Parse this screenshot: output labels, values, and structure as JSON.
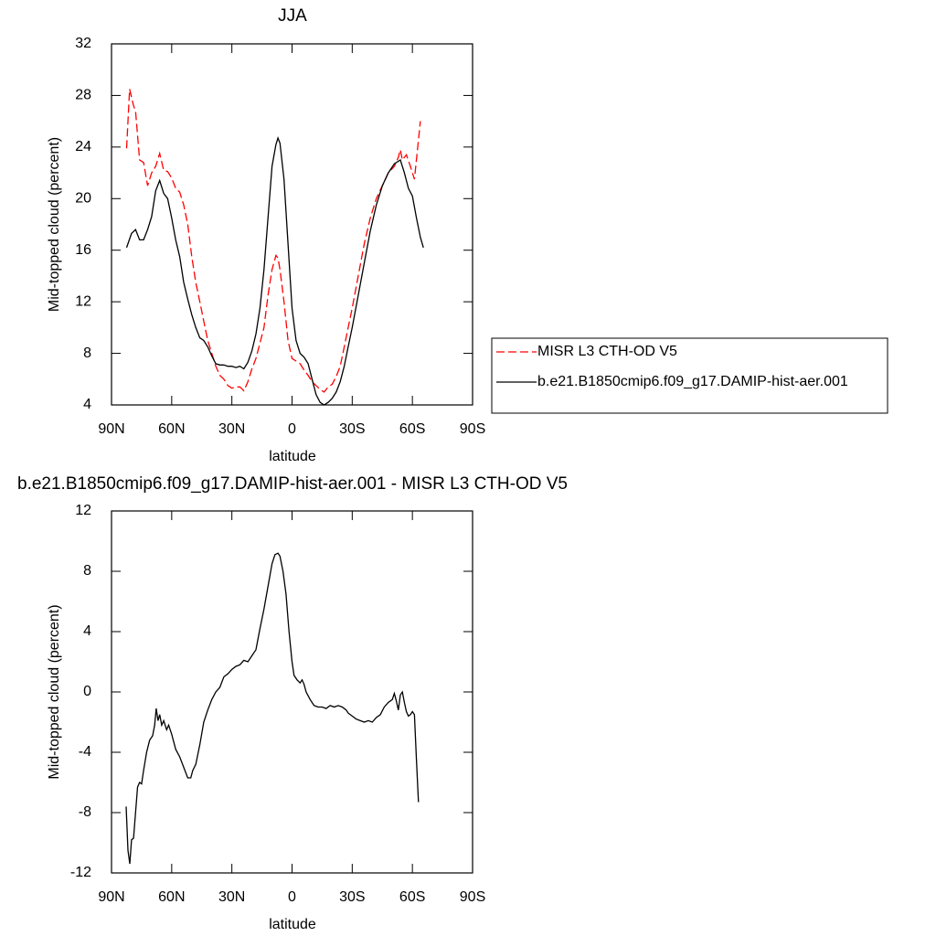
{
  "chart_data": [
    {
      "type": "line",
      "title": "JJA",
      "xlabel": "latitude",
      "ylabel": "Mid-topped cloud (percent)",
      "xlim": [
        90,
        -90
      ],
      "xticks": [
        {
          "value": 90,
          "label": "90N"
        },
        {
          "value": 60,
          "label": "60N"
        },
        {
          "value": 30,
          "label": "30N"
        },
        0,
        {
          "value": -30,
          "label": "30S"
        },
        {
          "value": -60,
          "label": "60S"
        },
        {
          "value": -90,
          "label": "90S"
        }
      ],
      "ylim": [
        4,
        32
      ],
      "yticks": [
        4,
        8,
        12,
        16,
        20,
        24,
        28,
        32
      ],
      "legend": "right",
      "series": [
        {
          "name": "MISR L3 CTH-OD V5",
          "color": "#ff0000",
          "dash": true,
          "x": [
            82.5,
            81,
            79,
            78,
            76,
            74,
            72,
            70,
            68,
            66,
            64,
            62,
            60,
            58,
            56,
            54,
            52,
            50,
            48,
            46,
            44,
            42,
            40,
            38,
            36,
            34,
            32,
            30,
            28,
            26,
            24,
            22,
            20,
            18,
            16,
            14,
            12,
            10,
            8,
            7,
            6,
            4,
            2,
            0,
            -2,
            -4,
            -6,
            -8,
            -10,
            -12,
            -14,
            -16,
            -18,
            -20,
            -22,
            -24,
            -26,
            -28,
            -30,
            -33,
            -36,
            -39,
            -42,
            -45,
            -48,
            -51,
            -53,
            -54,
            -55,
            -57,
            -59,
            -61,
            -64
          ],
          "values": [
            23.9,
            28.5,
            27.2,
            26.8,
            23.0,
            22.8,
            21.0,
            22.0,
            22.5,
            23.5,
            22.2,
            22.1,
            21.6,
            20.8,
            20.5,
            19.5,
            18.0,
            15.5,
            13.5,
            12.0,
            10.5,
            9.0,
            8.0,
            7.0,
            6.3,
            6.0,
            5.5,
            5.3,
            5.4,
            5.4,
            5.1,
            5.8,
            6.8,
            7.6,
            8.8,
            10.0,
            12.5,
            14.5,
            15.6,
            15.4,
            14.5,
            12.0,
            9.0,
            7.6,
            7.4,
            7.2,
            6.7,
            6.3,
            5.8,
            5.5,
            5.2,
            5.0,
            5.4,
            5.6,
            6.2,
            7.0,
            8.5,
            10.0,
            11.5,
            14.0,
            16.5,
            18.5,
            20.0,
            21.0,
            22.0,
            22.5,
            23.2,
            23.8,
            23.0,
            23.4,
            22.5,
            21.5,
            26.0
          ]
        },
        {
          "name": "b.e21.B1850cmip6.f09_g17.DAMIP-hist-aer.001",
          "color": "#000000",
          "dash": false,
          "x": [
            82.5,
            80,
            78,
            76,
            74,
            72,
            70,
            68,
            66,
            64,
            62,
            60,
            58,
            56,
            54,
            52,
            50,
            48,
            46,
            44,
            42,
            40,
            38,
            36,
            34,
            32,
            30,
            28,
            26,
            24,
            22,
            20,
            18,
            16,
            14,
            12,
            10,
            8,
            7,
            6,
            4,
            2,
            0,
            -2,
            -4,
            -6,
            -8,
            -10,
            -12,
            -14,
            -16,
            -18,
            -20,
            -22,
            -24,
            -26,
            -28,
            -30,
            -33,
            -36,
            -39,
            -42,
            -45,
            -48,
            -51,
            -54,
            -56,
            -58,
            -60,
            -62,
            -64,
            -65.5
          ],
          "values": [
            16.2,
            17.3,
            17.6,
            16.8,
            16.8,
            17.6,
            18.6,
            20.6,
            21.4,
            20.4,
            20.0,
            18.5,
            16.8,
            15.5,
            13.5,
            12.2,
            11.0,
            10.0,
            9.2,
            9.0,
            8.5,
            7.8,
            7.2,
            7.1,
            7.1,
            7.0,
            7.0,
            6.9,
            7.0,
            6.8,
            7.3,
            8.2,
            9.5,
            11.5,
            14.5,
            18.5,
            22.5,
            24.2,
            24.7,
            24.3,
            21.5,
            16.5,
            11.5,
            9.0,
            8.0,
            7.7,
            7.2,
            6.0,
            4.8,
            4.2,
            4.0,
            4.2,
            4.5,
            5.0,
            5.8,
            7.0,
            8.5,
            10.0,
            12.5,
            15.0,
            17.5,
            19.5,
            21.0,
            22.0,
            22.7,
            23.0,
            22.0,
            20.8,
            20.2,
            18.5,
            17.0,
            16.2
          ]
        }
      ]
    },
    {
      "type": "line",
      "title": "b.e21.B1850cmip6.f09_g17.DAMIP-hist-aer.001 - MISR L3 CTH-OD V5",
      "xlabel": "latitude",
      "ylabel": "Mid-topped cloud (percent)",
      "xlim": [
        90,
        -90
      ],
      "xticks": [
        {
          "value": 90,
          "label": "90N"
        },
        {
          "value": 60,
          "label": "60N"
        },
        {
          "value": 30,
          "label": "30N"
        },
        0,
        {
          "value": -30,
          "label": "30S"
        },
        {
          "value": -60,
          "label": "60S"
        },
        {
          "value": -90,
          "label": "90S"
        }
      ],
      "ylim": [
        -12,
        12
      ],
      "yticks": [
        -12,
        -8,
        -4,
        0,
        4,
        8,
        12
      ],
      "series": [
        {
          "color": "#000000",
          "dash": false,
          "x": [
            82.7,
            81.8,
            80.9,
            80,
            79,
            78,
            77,
            76,
            75,
            74,
            72.5,
            71,
            69.5,
            68.5,
            67.7,
            66.8,
            66,
            65,
            64,
            62.5,
            61.5,
            60,
            58,
            56,
            54,
            52,
            50.5,
            49.5,
            48,
            46,
            44,
            42,
            40,
            38,
            36,
            34,
            32,
            30,
            28,
            26,
            24,
            22,
            20,
            18,
            16,
            14,
            12,
            10,
            8.5,
            7,
            6,
            4.5,
            3,
            1.5,
            0,
            -1,
            -2.5,
            -4,
            -5,
            -6,
            -7,
            -9,
            -11,
            -13,
            -15,
            -17,
            -19,
            -21,
            -23,
            -25,
            -27,
            -28,
            -30,
            -32,
            -34,
            -36,
            -38,
            -40,
            -42,
            -44,
            -46,
            -48,
            -50,
            -51,
            -52,
            -53,
            -54,
            -55,
            -56,
            -57,
            -58,
            -59,
            -60,
            -61,
            -62,
            -63
          ],
          "values": [
            -7.6,
            -10.5,
            -11.4,
            -9.8,
            -9.7,
            -8.0,
            -6.3,
            -6.0,
            -6.1,
            -5.2,
            -4.0,
            -3.2,
            -2.9,
            -2.2,
            -1.1,
            -1.9,
            -1.5,
            -2.2,
            -1.9,
            -2.5,
            -2.2,
            -2.8,
            -3.8,
            -4.3,
            -5.0,
            -5.7,
            -5.7,
            -5.2,
            -4.8,
            -3.5,
            -2.0,
            -1.2,
            -0.5,
            0.0,
            0.3,
            1.0,
            1.2,
            1.5,
            1.7,
            1.8,
            2.1,
            2.0,
            2.4,
            2.8,
            4.2,
            5.5,
            7.0,
            8.5,
            9.1,
            9.2,
            9.0,
            8.0,
            6.5,
            4.0,
            2.0,
            1.1,
            0.8,
            0.6,
            0.8,
            0.5,
            0.0,
            -0.5,
            -0.9,
            -1.0,
            -1.0,
            -1.1,
            -0.9,
            -1.0,
            -0.9,
            -1.0,
            -1.2,
            -1.4,
            -1.6,
            -1.8,
            -1.9,
            -2.0,
            -1.9,
            -2.0,
            -1.7,
            -1.5,
            -1.0,
            -0.7,
            -0.5,
            -0.1,
            -0.6,
            -1.2,
            -0.2,
            0.0,
            -0.7,
            -1.3,
            -1.6,
            -1.5,
            -1.3,
            -1.5,
            -4.5,
            -7.3
          ]
        }
      ]
    }
  ]
}
